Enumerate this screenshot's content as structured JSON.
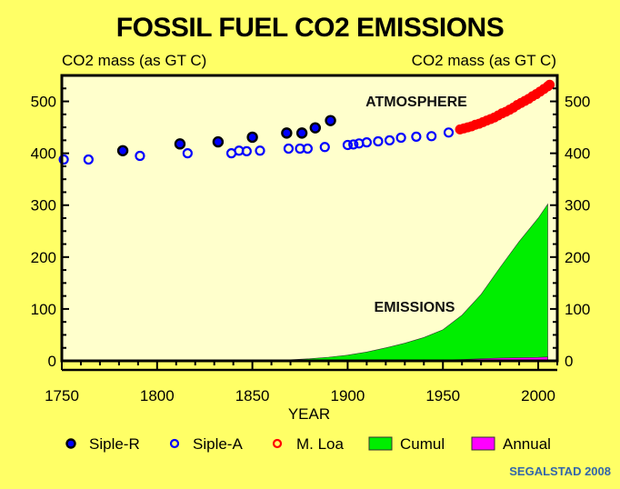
{
  "chart_data": {
    "type": "scatter",
    "title": "FOSSIL FUEL CO2 EMISSIONS",
    "ylabel_left": "CO2 mass (as GT C)",
    "ylabel_right": "CO2 mass (as GT C)",
    "xlabel": "YEAR",
    "xlim": [
      1750,
      2010
    ],
    "ylim": [
      0,
      550
    ],
    "xticks": [
      1750,
      1800,
      1850,
      1900,
      1950,
      2000
    ],
    "yticks": [
      0,
      100,
      200,
      300,
      400,
      500
    ],
    "grid": false,
    "legend_position": "bottom",
    "annotations": [
      "ATMOSPHERE",
      "EMISSIONS"
    ],
    "credit": "SEGALSTAD 2008",
    "colors": {
      "background": "#ffff66",
      "plot_bg": "#ffffcc",
      "siple_r": "#0000ff",
      "siple_a": "#0000ff",
      "mloa": "#ff0000",
      "cumul": "#00ee00",
      "annual": "#ff00ff"
    },
    "series": [
      {
        "name": "Siple-R",
        "kind": "filled-marker",
        "x": [
          1782,
          1812,
          1832,
          1850,
          1868,
          1876,
          1883,
          1891
        ],
        "y": [
          405,
          418,
          422,
          431,
          439,
          439,
          449,
          463
        ]
      },
      {
        "name": "Siple-A",
        "kind": "open-marker",
        "x": [
          1751,
          1764,
          1791,
          1816,
          1839,
          1843,
          1847,
          1854,
          1869,
          1875,
          1879,
          1888,
          1900,
          1903,
          1906,
          1910,
          1916,
          1922,
          1928,
          1936,
          1944,
          1953
        ],
        "y": [
          388,
          388,
          395,
          400,
          400,
          405,
          404,
          405,
          409,
          409,
          409,
          412,
          416,
          417,
          419,
          421,
          423,
          425,
          430,
          432,
          433,
          440
        ]
      },
      {
        "name": "M. Loa",
        "kind": "open-marker",
        "x": [
          1959,
          1961,
          1963,
          1965,
          1967,
          1969,
          1971,
          1973,
          1975,
          1977,
          1979,
          1981,
          1983,
          1985,
          1987,
          1989,
          1991,
          1993,
          1995,
          1997,
          1999,
          2001,
          2003,
          2005,
          2006
        ],
        "y": [
          446,
          448,
          450,
          452,
          455,
          457,
          460,
          463,
          466,
          469,
          473,
          477,
          480,
          484,
          488,
          493,
          497,
          501,
          505,
          510,
          514,
          519,
          524,
          529,
          532
        ]
      },
      {
        "name": "Cumul",
        "kind": "area",
        "x": [
          1850,
          1860,
          1870,
          1880,
          1890,
          1900,
          1910,
          1920,
          1930,
          1940,
          1950,
          1960,
          1970,
          1980,
          1990,
          2000,
          2005
        ],
        "y": [
          0,
          1,
          2,
          4,
          7,
          11,
          17,
          25,
          34,
          45,
          60,
          88,
          128,
          180,
          230,
          275,
          302
        ]
      },
      {
        "name": "Annual",
        "kind": "area",
        "x": [
          1850,
          1900,
          1925,
          1950,
          1960,
          1970,
          1980,
          1990,
          2000,
          2005
        ],
        "y": [
          0,
          0.5,
          1,
          1.6,
          2.6,
          4,
          5.3,
          6.1,
          6.7,
          7.5
        ]
      }
    ]
  }
}
